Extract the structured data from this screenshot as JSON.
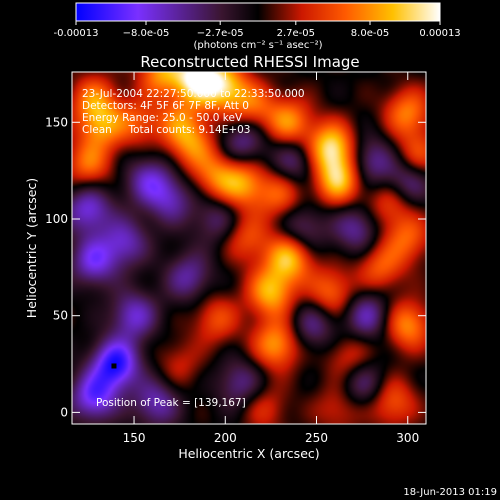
{
  "chart_data": {
    "type": "heatmap",
    "title": "Reconstructed RHESSI Image",
    "xlabel": "Heliocentric X (arcsec)",
    "ylabel": "Heliocentric Y (arcsec)",
    "xlim": [
      116,
      310
    ],
    "ylim": [
      -6,
      176
    ],
    "xticks": [
      "150",
      "200",
      "250",
      "300"
    ],
    "xtick_values": [
      150,
      200,
      250,
      300
    ],
    "yticks": [
      "0",
      "50",
      "100",
      "150"
    ],
    "ytick_values": [
      0,
      50,
      100,
      150
    ],
    "colorbar": {
      "min": -0.00013,
      "max": 0.00013,
      "tick_labels": [
        "-0.00013",
        "−8.0e-05",
        "−2.7e-05",
        "2.7e-05",
        "8.0e-05",
        "0.00013"
      ],
      "tick_values": [
        -0.00013,
        -8e-05,
        -2.7e-05,
        2.7e-05,
        8e-05,
        0.00013
      ],
      "units": "(photons cm⁻² s⁻¹ asec⁻²)",
      "colors": [
        "#0000ff",
        "#7a30ff",
        "#3a1530",
        "#000000",
        "#cc1800",
        "#ff5a00",
        "#ffc000",
        "#ffffff"
      ]
    },
    "info_lines": [
      "23-Jul-2004 22:27:50.000 to 22:33:50.000",
      "Detectors: 4F 5F 6F 7F 8F, Att 0",
      "Energy Range: 25.0 - 50.0 keV",
      "Clean     Total counts: 9.14E+03"
    ],
    "peak_label": "Position of Peak = [139,167]",
    "peak_position": [
      139,
      167
    ],
    "blobs": [
      {
        "x": 185,
        "y": 173,
        "v": 1.0
      },
      {
        "x": 200,
        "y": 168,
        "v": 0.7
      },
      {
        "x": 165,
        "y": 176,
        "v": 0.6
      },
      {
        "x": 128,
        "y": 162,
        "v": 0.5
      },
      {
        "x": 132,
        "y": 148,
        "v": 0.55
      },
      {
        "x": 125,
        "y": 128,
        "v": 0.5
      },
      {
        "x": 152,
        "y": 150,
        "v": 0.4
      },
      {
        "x": 175,
        "y": 150,
        "v": 0.45
      },
      {
        "x": 182,
        "y": 138,
        "v": 0.5
      },
      {
        "x": 215,
        "y": 158,
        "v": 0.45
      },
      {
        "x": 235,
        "y": 150,
        "v": 0.6
      },
      {
        "x": 258,
        "y": 137,
        "v": 0.85
      },
      {
        "x": 262,
        "y": 120,
        "v": 0.75
      },
      {
        "x": 300,
        "y": 155,
        "v": 0.55
      },
      {
        "x": 305,
        "y": 132,
        "v": 0.45
      },
      {
        "x": 195,
        "y": 122,
        "v": 0.5
      },
      {
        "x": 210,
        "y": 118,
        "v": 0.6
      },
      {
        "x": 230,
        "y": 112,
        "v": 0.45
      },
      {
        "x": 290,
        "y": 108,
        "v": 0.4
      },
      {
        "x": 300,
        "y": 90,
        "v": 0.45
      },
      {
        "x": 212,
        "y": 90,
        "v": 0.4
      },
      {
        "x": 235,
        "y": 80,
        "v": 0.75
      },
      {
        "x": 225,
        "y": 62,
        "v": 0.7
      },
      {
        "x": 258,
        "y": 62,
        "v": 0.5
      },
      {
        "x": 285,
        "y": 75,
        "v": 0.45
      },
      {
        "x": 300,
        "y": 45,
        "v": 0.6
      },
      {
        "x": 228,
        "y": 35,
        "v": 0.65
      },
      {
        "x": 195,
        "y": 48,
        "v": 0.4
      },
      {
        "x": 268,
        "y": 28,
        "v": 0.35
      },
      {
        "x": 292,
        "y": 5,
        "v": 0.45
      },
      {
        "x": 262,
        "y": 2,
        "v": 0.3
      },
      {
        "x": 222,
        "y": 2,
        "v": 0.3
      },
      {
        "x": 175,
        "y": 25,
        "v": 0.25
      },
      {
        "x": 145,
        "y": 88,
        "v": -0.5
      },
      {
        "x": 125,
        "y": 105,
        "v": -0.6
      },
      {
        "x": 158,
        "y": 120,
        "v": -0.5
      },
      {
        "x": 128,
        "y": 78,
        "v": -0.6
      },
      {
        "x": 150,
        "y": 50,
        "v": -0.55
      },
      {
        "x": 140,
        "y": 25,
        "v": -0.9
      },
      {
        "x": 128,
        "y": 8,
        "v": -0.7
      },
      {
        "x": 162,
        "y": 5,
        "v": -0.5
      },
      {
        "x": 180,
        "y": 70,
        "v": -0.45
      },
      {
        "x": 210,
        "y": 140,
        "v": -0.45
      },
      {
        "x": 238,
        "y": 130,
        "v": -0.4
      },
      {
        "x": 280,
        "y": 130,
        "v": -0.45
      },
      {
        "x": 300,
        "y": 120,
        "v": -0.5
      },
      {
        "x": 242,
        "y": 95,
        "v": -0.4
      },
      {
        "x": 272,
        "y": 95,
        "v": -0.45
      },
      {
        "x": 248,
        "y": 45,
        "v": -0.4
      },
      {
        "x": 278,
        "y": 50,
        "v": -0.5
      },
      {
        "x": 275,
        "y": 15,
        "v": -0.4
      },
      {
        "x": 208,
        "y": 15,
        "v": -0.4
      },
      {
        "x": 195,
        "y": 100,
        "v": -0.35
      },
      {
        "x": 170,
        "y": 110,
        "v": -0.45
      }
    ]
  },
  "footer": {
    "date": "18-Jun-2013 01:19"
  }
}
